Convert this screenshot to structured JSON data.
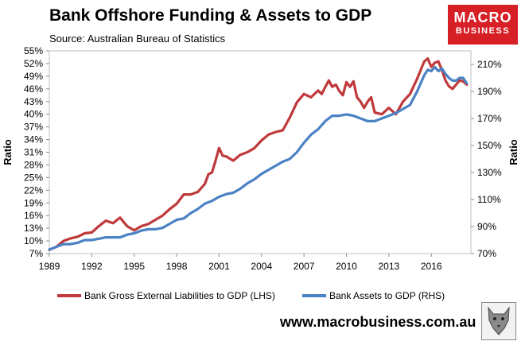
{
  "header": {
    "title": "Bank Offshore Funding & Assets to GDP",
    "source": "Source:  Australian Bureau of Statistics"
  },
  "logo": {
    "line1": "MACRO",
    "line2": "BUSINESS",
    "color": "#d71f26"
  },
  "footer": {
    "website": "www.macrobusiness.com.au"
  },
  "chart_data": {
    "type": "line",
    "title": "Bank Offshore Funding & Assets to GDP",
    "xlabel": "",
    "ylabel_left": "Ratio",
    "ylabel_right": "Ratio",
    "xlim": [
      1989,
      2018.8
    ],
    "ylim_left": [
      0.07,
      0.55
    ],
    "ylim_right": [
      0.7,
      2.2
    ],
    "x_ticks": [
      1989,
      1992,
      1995,
      1998,
      2001,
      2004,
      2007,
      2010,
      2013,
      2016
    ],
    "y_left_ticks": [
      "7%",
      "10%",
      "13%",
      "16%",
      "19%",
      "22%",
      "25%",
      "28%",
      "31%",
      "34%",
      "37%",
      "40%",
      "43%",
      "46%",
      "49%",
      "52%",
      "55%"
    ],
    "y_right_ticks": [
      "70%",
      "90%",
      "110%",
      "130%",
      "150%",
      "170%",
      "190%",
      "210%"
    ],
    "legend_position": "bottom",
    "grid": false,
    "series": [
      {
        "name": "Bank Gross External Liabilities to GDP (LHS)",
        "axis": "left",
        "color": "#c0393b",
        "x": [
          1989,
          1989.5,
          1990,
          1990.5,
          1991,
          1991.5,
          1992,
          1992.5,
          1993,
          1993.5,
          1994,
          1994.5,
          1995,
          1995.5,
          1996,
          1996.5,
          1997,
          1997.5,
          1998,
          1998.5,
          1999,
          1999.5,
          2000,
          2000.25,
          2000.5,
          2000.75,
          2001,
          2001.25,
          2001.5,
          2002,
          2002.5,
          2003,
          2003.5,
          2004,
          2004.5,
          2005,
          2005.5,
          2006,
          2006.5,
          2007,
          2007.5,
          2008,
          2008.25,
          2008.5,
          2008.75,
          2009,
          2009.25,
          2009.5,
          2009.75,
          2010,
          2010.25,
          2010.5,
          2010.75,
          2011,
          2011.25,
          2011.5,
          2011.75,
          2012,
          2012.5,
          2013,
          2013.5,
          2014,
          2014.5,
          2015,
          2015.5,
          2015.75,
          2016,
          2016.25,
          2016.5,
          2016.75,
          2017,
          2017.25,
          2017.5,
          2017.75,
          2018,
          2018.25,
          2018.5
        ],
        "values": [
          0.079,
          0.086,
          0.1,
          0.106,
          0.11,
          0.118,
          0.12,
          0.135,
          0.148,
          0.142,
          0.155,
          0.135,
          0.125,
          0.135,
          0.14,
          0.15,
          0.16,
          0.175,
          0.188,
          0.21,
          0.21,
          0.216,
          0.235,
          0.258,
          0.262,
          0.29,
          0.32,
          0.302,
          0.3,
          0.29,
          0.304,
          0.31,
          0.32,
          0.338,
          0.352,
          0.358,
          0.362,
          0.392,
          0.428,
          0.448,
          0.44,
          0.456,
          0.448,
          0.464,
          0.48,
          0.465,
          0.47,
          0.455,
          0.445,
          0.476,
          0.465,
          0.478,
          0.44,
          0.43,
          0.415,
          0.43,
          0.44,
          0.404,
          0.4,
          0.415,
          0.4,
          0.43,
          0.448,
          0.484,
          0.525,
          0.532,
          0.512,
          0.522,
          0.525,
          0.505,
          0.48,
          0.466,
          0.46,
          0.47,
          0.48,
          0.478,
          0.47
        ]
      },
      {
        "name": "Bank Assets to GDP (RHS)",
        "axis": "right",
        "color": "#4a82c3",
        "x": [
          1989,
          1989.5,
          1990,
          1990.5,
          1991,
          1991.5,
          1992,
          1992.5,
          1993,
          1993.5,
          1994,
          1994.5,
          1995,
          1995.5,
          1996,
          1996.5,
          1997,
          1997.5,
          1998,
          1998.5,
          1999,
          1999.5,
          2000,
          2000.5,
          2001,
          2001.5,
          2002,
          2002.5,
          2003,
          2003.5,
          2004,
          2004.5,
          2005,
          2005.5,
          2006,
          2006.5,
          2007,
          2007.5,
          2008,
          2008.5,
          2009,
          2009.5,
          2010,
          2010.5,
          2011,
          2011.5,
          2012,
          2012.5,
          2013,
          2013.5,
          2014,
          2014.5,
          2015,
          2015.5,
          2015.75,
          2016,
          2016.25,
          2016.5,
          2016.75,
          2017,
          2017.25,
          2017.5,
          2017.75,
          2018,
          2018.25,
          2018.5
        ],
        "values": [
          0.73,
          0.75,
          0.77,
          0.77,
          0.78,
          0.8,
          0.8,
          0.81,
          0.82,
          0.82,
          0.82,
          0.84,
          0.85,
          0.87,
          0.88,
          0.88,
          0.89,
          0.92,
          0.95,
          0.96,
          1.0,
          1.03,
          1.07,
          1.09,
          1.12,
          1.14,
          1.15,
          1.18,
          1.22,
          1.25,
          1.29,
          1.32,
          1.35,
          1.38,
          1.4,
          1.45,
          1.52,
          1.58,
          1.62,
          1.68,
          1.72,
          1.72,
          1.73,
          1.72,
          1.7,
          1.68,
          1.68,
          1.7,
          1.72,
          1.74,
          1.77,
          1.8,
          1.9,
          2.02,
          2.06,
          2.05,
          2.08,
          2.05,
          2.07,
          2.03,
          2.0,
          1.98,
          1.98,
          2.0,
          2.0,
          1.96
        ]
      }
    ]
  }
}
